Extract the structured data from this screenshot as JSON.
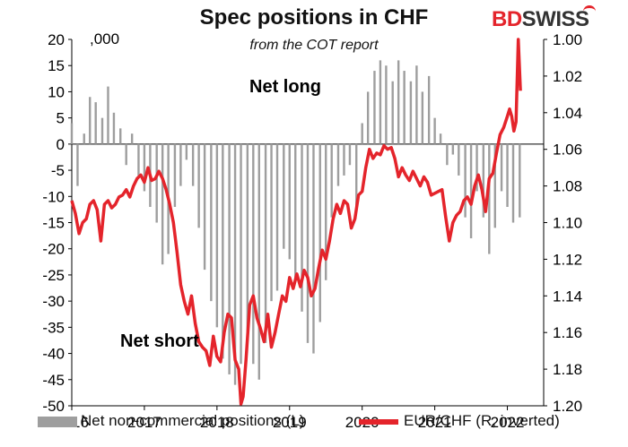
{
  "title": "Spec positions in CHF",
  "subtitle": "from the COT report",
  "logo": {
    "text_red": "BD",
    "text_dark": "SWISS"
  },
  "left_unit_label": ",000",
  "annotations": {
    "net_long": "Net long",
    "net_short": "Net short"
  },
  "legend": {
    "bars": "Net non-commercial positions (L)",
    "line": "EUR/CHF (R, inverted)"
  },
  "colors": {
    "bars": "#9e9e9e",
    "line": "#e4242b",
    "axis": "#000000"
  },
  "chart_data": {
    "type": "bar",
    "title": "Spec positions in CHF",
    "subtitle": "from the COT report",
    "x_ticks": [
      "2016",
      "2017",
      "2018",
      "2019",
      "2020",
      "2021",
      "2022"
    ],
    "x_range": [
      2016.0,
      2022.5
    ],
    "y_left": {
      "label": ",000",
      "ylim": [
        -50,
        20
      ],
      "ticks": [
        20,
        15,
        10,
        5,
        0,
        -5,
        -10,
        -15,
        -20,
        -25,
        -30,
        -35,
        -40,
        -45,
        -50
      ]
    },
    "y_right": {
      "label": "EUR/CHF",
      "inverted": true,
      "ylim": [
        1.0,
        1.2
      ],
      "ticks": [
        "1.00",
        "1.02",
        "1.04",
        "1.06",
        "1.08",
        "1.10",
        "1.12",
        "1.14",
        "1.16",
        "1.18",
        "1.20"
      ]
    },
    "series": [
      {
        "name": "Net non-commercial positions (L)",
        "type": "bar",
        "axis": "left",
        "x": [
          2016.0,
          2016.08,
          2016.17,
          2016.25,
          2016.33,
          2016.42,
          2016.5,
          2016.58,
          2016.67,
          2016.75,
          2016.83,
          2016.92,
          2017.0,
          2017.08,
          2017.17,
          2017.25,
          2017.33,
          2017.42,
          2017.5,
          2017.58,
          2017.67,
          2017.75,
          2017.83,
          2017.92,
          2018.0,
          2018.08,
          2018.17,
          2018.25,
          2018.33,
          2018.42,
          2018.5,
          2018.58,
          2018.67,
          2018.75,
          2018.83,
          2018.92,
          2019.0,
          2019.08,
          2019.17,
          2019.25,
          2019.33,
          2019.42,
          2019.5,
          2019.58,
          2019.67,
          2019.75,
          2019.83,
          2019.92,
          2020.0,
          2020.08,
          2020.17,
          2020.25,
          2020.33,
          2020.42,
          2020.5,
          2020.58,
          2020.67,
          2020.75,
          2020.83,
          2020.92,
          2021.0,
          2021.08,
          2021.17,
          2021.25,
          2021.33,
          2021.42,
          2021.5,
          2021.58,
          2021.67,
          2021.75,
          2021.83,
          2021.92,
          2022.0,
          2022.08,
          2022.17
        ],
        "values": [
          4,
          -8,
          2,
          9,
          8,
          5,
          11,
          6,
          3,
          -4,
          2,
          -6,
          -9,
          -12,
          -15,
          -23,
          -21,
          -12,
          -8,
          -3,
          -8,
          -16,
          -24,
          -30,
          -35,
          -41,
          -44,
          -46,
          -42,
          -36,
          -42,
          -45,
          -38,
          -30,
          -28,
          -20,
          -22,
          -26,
          -32,
          -38,
          -40,
          -34,
          -26,
          -14,
          -8,
          -6,
          -4,
          -12,
          4,
          10,
          14,
          16,
          15,
          12,
          16,
          14,
          12,
          15,
          10,
          13,
          5,
          2,
          -4,
          -2,
          -6,
          -14,
          -18,
          -9,
          -14,
          -21,
          -16,
          -9,
          -12,
          -15,
          -14
        ]
      },
      {
        "name": "EUR/CHF (R, inverted)",
        "type": "line",
        "axis": "right",
        "x": [
          2016.0,
          2016.05,
          2016.1,
          2016.15,
          2016.2,
          2016.25,
          2016.3,
          2016.35,
          2016.4,
          2016.45,
          2016.5,
          2016.55,
          2016.6,
          2016.65,
          2016.7,
          2016.75,
          2016.8,
          2016.85,
          2016.9,
          2016.95,
          2017.0,
          2017.05,
          2017.1,
          2017.15,
          2017.2,
          2017.25,
          2017.3,
          2017.35,
          2017.4,
          2017.45,
          2017.5,
          2017.55,
          2017.6,
          2017.65,
          2017.7,
          2017.75,
          2017.8,
          2017.85,
          2017.9,
          2017.95,
          2018.0,
          2018.05,
          2018.1,
          2018.15,
          2018.2,
          2018.25,
          2018.3,
          2018.33,
          2018.36,
          2018.4,
          2018.45,
          2018.5,
          2018.55,
          2018.6,
          2018.65,
          2018.7,
          2018.75,
          2018.8,
          2018.85,
          2018.9,
          2018.95,
          2019.0,
          2019.05,
          2019.1,
          2019.15,
          2019.2,
          2019.25,
          2019.3,
          2019.35,
          2019.4,
          2019.45,
          2019.5,
          2019.55,
          2019.6,
          2019.65,
          2019.7,
          2019.75,
          2019.8,
          2019.85,
          2019.9,
          2019.95,
          2020.0,
          2020.05,
          2020.1,
          2020.15,
          2020.2,
          2020.25,
          2020.3,
          2020.35,
          2020.4,
          2020.45,
          2020.5,
          2020.55,
          2020.6,
          2020.65,
          2020.7,
          2020.75,
          2020.8,
          2020.85,
          2020.9,
          2020.95,
          2021.0,
          2021.05,
          2021.1,
          2021.15,
          2021.2,
          2021.25,
          2021.3,
          2021.35,
          2021.4,
          2021.45,
          2021.5,
          2021.55,
          2021.6,
          2021.65,
          2021.7,
          2021.75,
          2021.8,
          2021.85,
          2021.9,
          2021.95,
          2022.0,
          2022.03,
          2022.06,
          2022.09,
          2022.12,
          2022.15,
          2022.18
        ],
        "values": [
          1.088,
          1.095,
          1.106,
          1.1,
          1.098,
          1.09,
          1.088,
          1.093,
          1.11,
          1.09,
          1.088,
          1.092,
          1.09,
          1.086,
          1.085,
          1.082,
          1.086,
          1.08,
          1.076,
          1.074,
          1.078,
          1.07,
          1.077,
          1.076,
          1.072,
          1.076,
          1.082,
          1.09,
          1.1,
          1.116,
          1.134,
          1.143,
          1.15,
          1.14,
          1.155,
          1.165,
          1.168,
          1.17,
          1.178,
          1.162,
          1.173,
          1.176,
          1.16,
          1.15,
          1.152,
          1.175,
          1.18,
          1.199,
          1.195,
          1.175,
          1.145,
          1.14,
          1.152,
          1.158,
          1.165,
          1.15,
          1.168,
          1.16,
          1.15,
          1.14,
          1.143,
          1.13,
          1.136,
          1.128,
          1.135,
          1.126,
          1.13,
          1.14,
          1.136,
          1.125,
          1.115,
          1.12,
          1.11,
          1.098,
          1.09,
          1.095,
          1.088,
          1.09,
          1.103,
          1.098,
          1.085,
          1.083,
          1.07,
          1.06,
          1.065,
          1.062,
          1.063,
          1.058,
          1.06,
          1.059,
          1.065,
          1.075,
          1.07,
          1.074,
          1.077,
          1.072,
          1.076,
          1.08,
          1.075,
          1.078,
          1.085,
          1.084,
          1.083,
          1.082,
          1.097,
          1.11,
          1.1,
          1.096,
          1.094,
          1.088,
          1.086,
          1.09,
          1.08,
          1.074,
          1.082,
          1.094,
          1.076,
          1.073,
          1.062,
          1.052,
          1.048,
          1.042,
          1.038,
          1.042,
          1.05,
          1.045,
          1.0,
          1.028
        ]
      }
    ],
    "legend": "bottom",
    "grid": false
  }
}
